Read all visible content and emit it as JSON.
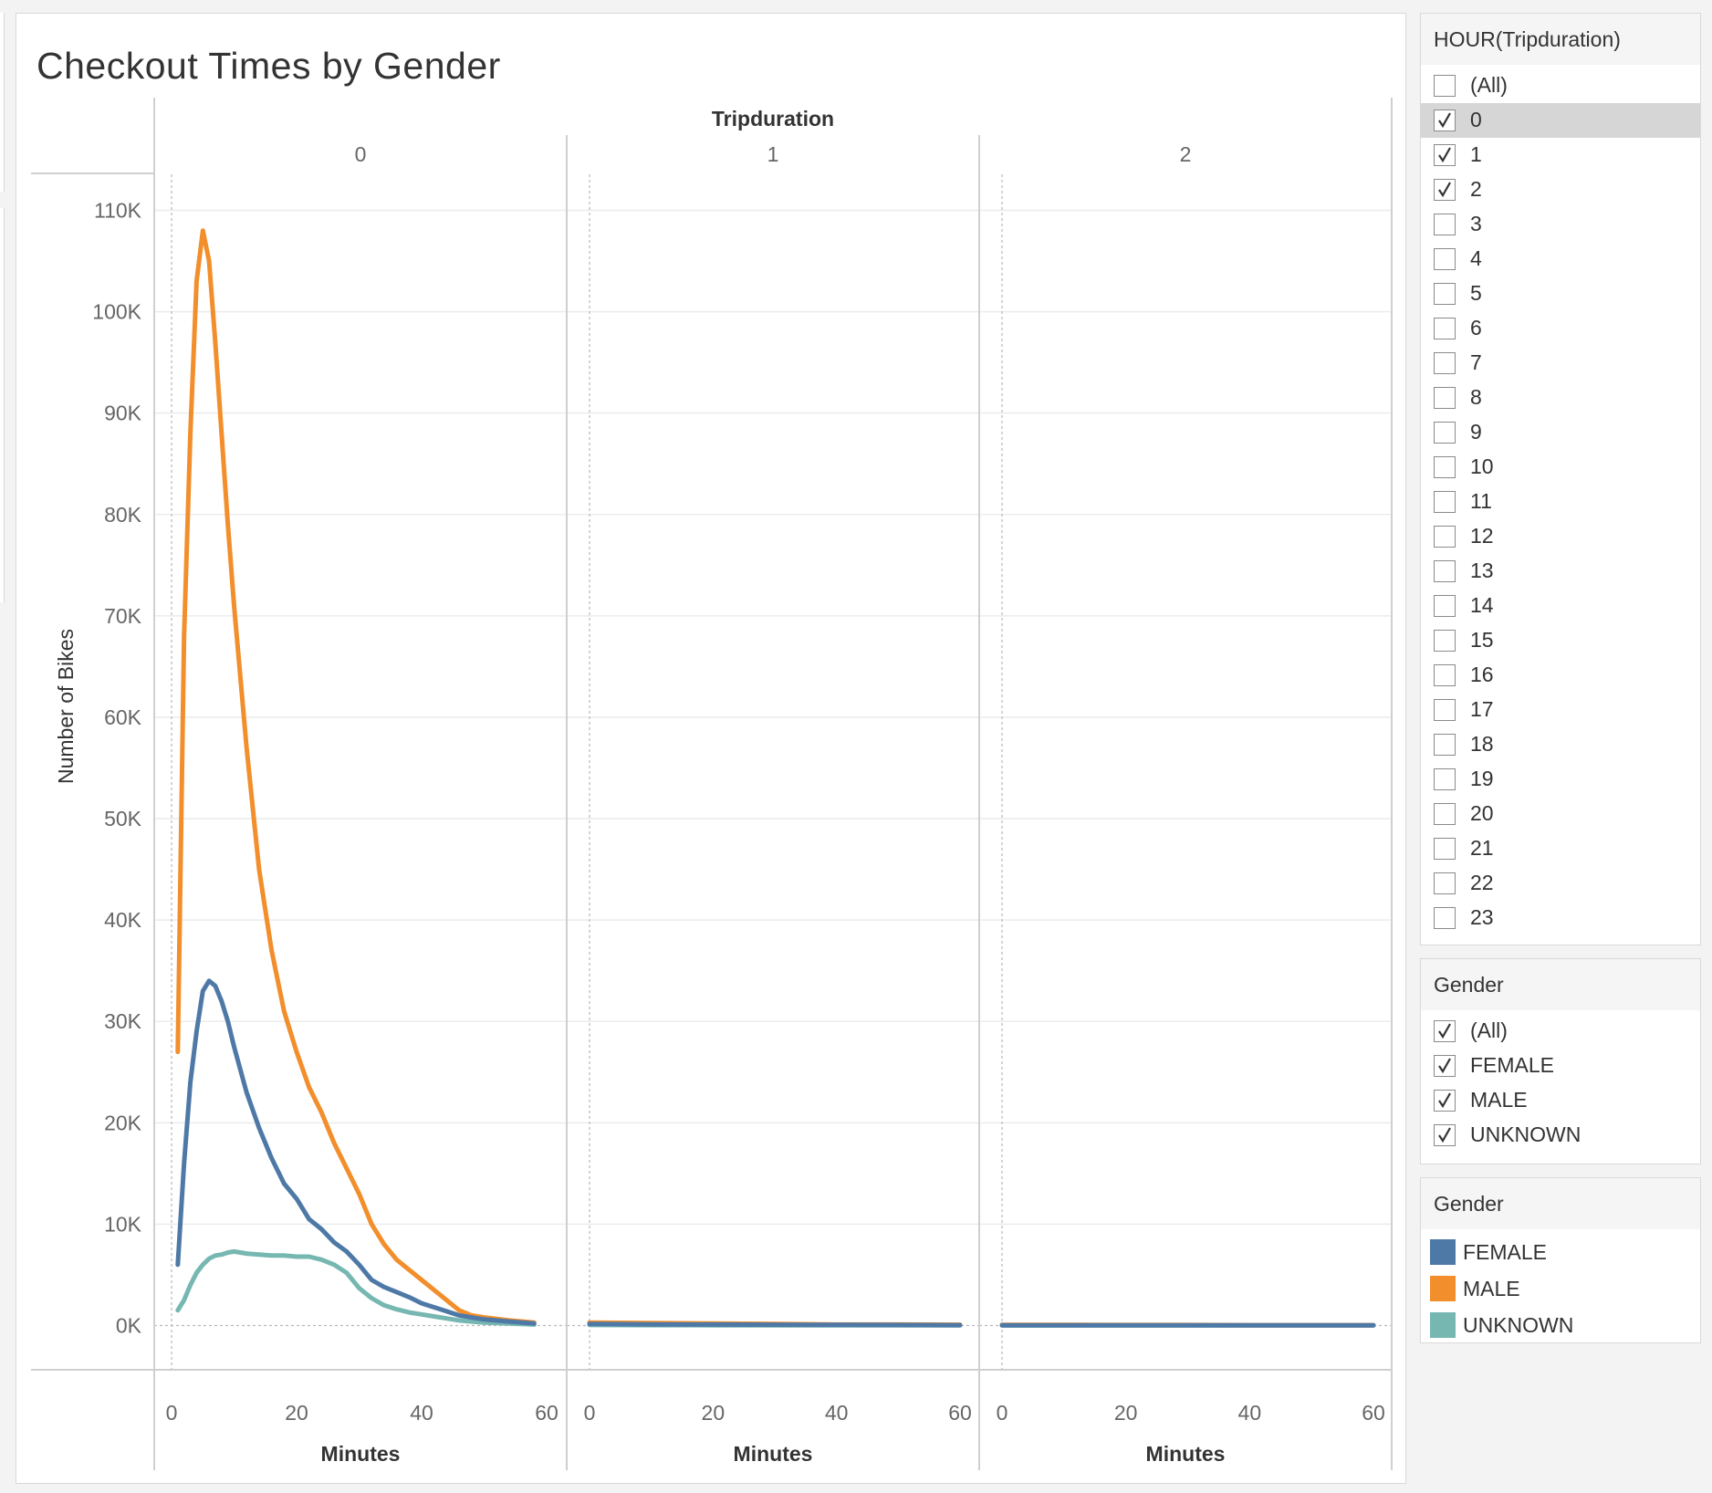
{
  "colors": {
    "FEMALE": "#4e79a7",
    "MALE": "#f28e2b",
    "UNKNOWN": "#76b7b2"
  },
  "chart_data": {
    "type": "line",
    "title": "Checkout Times by Gender",
    "column_header": "Tripduration",
    "panels": [
      "0",
      "1",
      "2"
    ],
    "xlabel": "Minutes",
    "ylabel": "Number of Bikes",
    "xlim": [
      0,
      60
    ],
    "ylim": [
      0,
      110000
    ],
    "xticks": [
      0,
      20,
      40,
      60
    ],
    "xtick_labels": [
      "0",
      "20",
      "40",
      "60"
    ],
    "yticks": [
      0,
      10000,
      20000,
      30000,
      40000,
      50000,
      60000,
      70000,
      80000,
      90000,
      100000,
      110000
    ],
    "ytick_labels": [
      "0K",
      "10K",
      "20K",
      "30K",
      "40K",
      "50K",
      "60K",
      "70K",
      "80K",
      "90K",
      "100K",
      "110K"
    ],
    "grid": true,
    "legend_position": "right",
    "series": [
      {
        "name": "MALE",
        "panel": "0",
        "x": [
          1,
          2,
          3,
          4,
          5,
          6,
          7,
          8,
          9,
          10,
          12,
          14,
          16,
          18,
          20,
          22,
          24,
          26,
          28,
          30,
          32,
          34,
          36,
          38,
          40,
          42,
          44,
          46,
          48,
          50,
          54,
          58
        ],
        "y": [
          27000,
          68000,
          88000,
          103000,
          108000,
          105000,
          97000,
          88000,
          79000,
          71000,
          57000,
          45000,
          37000,
          31000,
          27000,
          23500,
          21000,
          18000,
          15500,
          13000,
          10000,
          8000,
          6500,
          5500,
          4500,
          3500,
          2500,
          1500,
          1000,
          800,
          500,
          300
        ]
      },
      {
        "name": "FEMALE",
        "panel": "0",
        "x": [
          1,
          2,
          3,
          4,
          5,
          6,
          7,
          8,
          9,
          10,
          12,
          14,
          16,
          18,
          20,
          22,
          24,
          26,
          28,
          30,
          32,
          34,
          36,
          38,
          40,
          42,
          44,
          46,
          48,
          50,
          54,
          58
        ],
        "y": [
          6000,
          16000,
          24000,
          29000,
          33000,
          34000,
          33500,
          32000,
          30000,
          27500,
          23000,
          19500,
          16500,
          14000,
          12500,
          10500,
          9500,
          8200,
          7300,
          6000,
          4500,
          3800,
          3300,
          2800,
          2200,
          1800,
          1400,
          1000,
          800,
          600,
          400,
          200
        ]
      },
      {
        "name": "UNKNOWN",
        "panel": "0",
        "x": [
          1,
          2,
          3,
          4,
          5,
          6,
          7,
          8,
          9,
          10,
          12,
          14,
          16,
          18,
          20,
          22,
          24,
          26,
          28,
          30,
          32,
          34,
          36,
          38,
          40,
          42,
          44,
          46,
          48,
          50,
          54,
          58
        ],
        "y": [
          1500,
          2500,
          4000,
          5200,
          6000,
          6600,
          6900,
          7000,
          7200,
          7300,
          7100,
          7000,
          6900,
          6900,
          6800,
          6800,
          6500,
          6000,
          5200,
          3700,
          2700,
          2000,
          1600,
          1300,
          1100,
          900,
          700,
          500,
          400,
          300,
          200,
          100
        ]
      },
      {
        "name": "MALE",
        "panel": "1",
        "x": [
          0,
          10,
          20,
          30,
          40,
          50,
          60
        ],
        "y": [
          300,
          250,
          200,
          150,
          100,
          100,
          80
        ]
      },
      {
        "name": "FEMALE",
        "panel": "1",
        "x": [
          0,
          10,
          20,
          30,
          40,
          50,
          60
        ],
        "y": [
          150,
          120,
          100,
          80,
          60,
          50,
          40
        ]
      },
      {
        "name": "UNKNOWN",
        "panel": "1",
        "x": [
          0,
          10,
          20,
          30,
          40,
          50,
          60
        ],
        "y": [
          50,
          40,
          30,
          30,
          20,
          20,
          20
        ]
      },
      {
        "name": "MALE",
        "panel": "2",
        "x": [
          0,
          10,
          20,
          30,
          40,
          50,
          60
        ],
        "y": [
          60,
          60,
          50,
          50,
          40,
          40,
          40
        ]
      },
      {
        "name": "FEMALE",
        "panel": "2",
        "x": [
          0,
          10,
          20,
          30,
          40,
          50,
          60
        ],
        "y": [
          30,
          30,
          30,
          20,
          20,
          20,
          20
        ]
      },
      {
        "name": "UNKNOWN",
        "panel": "2",
        "x": [
          0,
          10,
          20,
          30,
          40,
          50,
          60
        ],
        "y": [
          10,
          10,
          10,
          10,
          10,
          10,
          10
        ]
      }
    ]
  },
  "filters": {
    "hour": {
      "title": "HOUR(Tripduration)",
      "items": [
        {
          "label": "(All)",
          "checked": false
        },
        {
          "label": "0",
          "checked": true
        },
        {
          "label": "1",
          "checked": true
        },
        {
          "label": "2",
          "checked": true
        },
        {
          "label": "3",
          "checked": false
        },
        {
          "label": "4",
          "checked": false
        },
        {
          "label": "5",
          "checked": false
        },
        {
          "label": "6",
          "checked": false
        },
        {
          "label": "7",
          "checked": false
        },
        {
          "label": "8",
          "checked": false
        },
        {
          "label": "9",
          "checked": false
        },
        {
          "label": "10",
          "checked": false
        },
        {
          "label": "11",
          "checked": false
        },
        {
          "label": "12",
          "checked": false
        },
        {
          "label": "13",
          "checked": false
        },
        {
          "label": "14",
          "checked": false
        },
        {
          "label": "15",
          "checked": false
        },
        {
          "label": "16",
          "checked": false
        },
        {
          "label": "17",
          "checked": false
        },
        {
          "label": "18",
          "checked": false
        },
        {
          "label": "19",
          "checked": false
        },
        {
          "label": "20",
          "checked": false
        },
        {
          "label": "21",
          "checked": false
        },
        {
          "label": "22",
          "checked": false
        },
        {
          "label": "23",
          "checked": false
        }
      ]
    },
    "gender": {
      "title": "Gender",
      "items": [
        {
          "label": "(All)",
          "checked": true
        },
        {
          "label": "FEMALE",
          "checked": true
        },
        {
          "label": "MALE",
          "checked": true
        },
        {
          "label": "UNKNOWN",
          "checked": true
        }
      ]
    }
  },
  "legend": {
    "title": "Gender",
    "items": [
      {
        "label": "FEMALE",
        "color": "#4e79a7"
      },
      {
        "label": "MALE",
        "color": "#f28e2b"
      },
      {
        "label": "UNKNOWN",
        "color": "#76b7b2"
      }
    ]
  }
}
